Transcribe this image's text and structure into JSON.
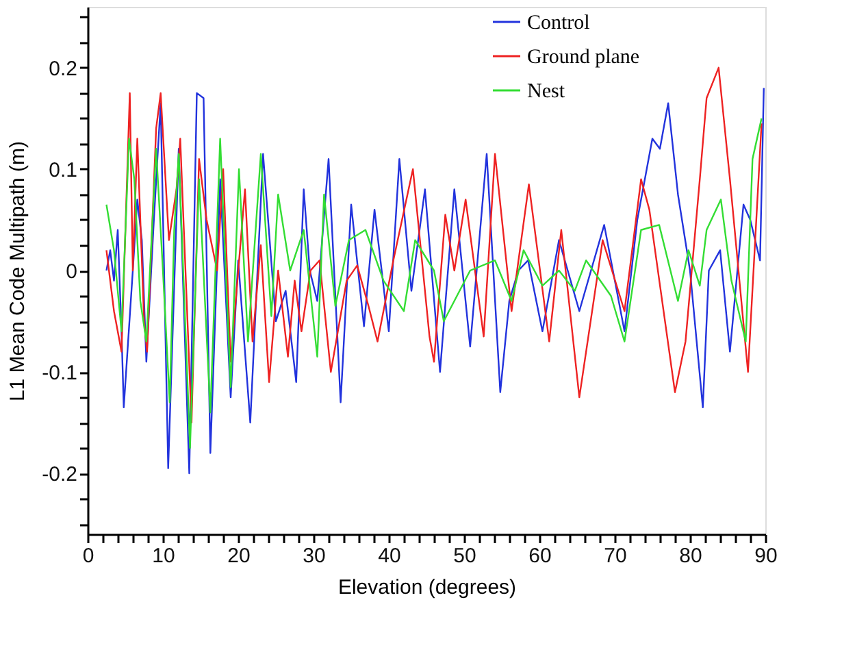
{
  "chart_data": {
    "type": "line",
    "xlabel": "Elevation (degrees)",
    "ylabel": "L1 Mean Code Multipath (m)",
    "xlim": [
      0,
      90
    ],
    "ylim": [
      -0.26,
      0.26
    ],
    "xticks": [
      0,
      {
        "value": 2,
        "label": null
      },
      {
        "value": 4,
        "label": null
      },
      {
        "value": 6,
        "label": null
      },
      {
        "value": 8,
        "label": null
      },
      10,
      {
        "value": 12,
        "label": null
      },
      {
        "value": 14,
        "label": null
      },
      {
        "value": 16,
        "label": null
      },
      {
        "value": 18,
        "label": null
      },
      20,
      {
        "value": 22,
        "label": null
      },
      {
        "value": 24,
        "label": null
      },
      {
        "value": 26,
        "label": null
      },
      {
        "value": 28,
        "label": null
      },
      30,
      {
        "value": 32,
        "label": null
      },
      {
        "value": 34,
        "label": null
      },
      {
        "value": 36,
        "label": null
      },
      {
        "value": 38,
        "label": null
      },
      40,
      {
        "value": 42,
        "label": null
      },
      {
        "value": 44,
        "label": null
      },
      {
        "value": 46,
        "label": null
      },
      {
        "value": 48,
        "label": null
      },
      50,
      {
        "value": 52,
        "label": null
      },
      {
        "value": 54,
        "label": null
      },
      {
        "value": 56,
        "label": null
      },
      {
        "value": 58,
        "label": null
      },
      60,
      {
        "value": 62,
        "label": null
      },
      {
        "value": 64,
        "label": null
      },
      {
        "value": 66,
        "label": null
      },
      {
        "value": 68,
        "label": null
      },
      70,
      {
        "value": 72,
        "label": null
      },
      {
        "value": 74,
        "label": null
      },
      {
        "value": 76,
        "label": null
      },
      {
        "value": 78,
        "label": null
      },
      80,
      {
        "value": 82,
        "label": null
      },
      {
        "value": 84,
        "label": null
      },
      {
        "value": 86,
        "label": null
      },
      {
        "value": 88,
        "label": null
      },
      90
    ],
    "yticks": [
      {
        "value": -0.25,
        "label": null
      },
      {
        "value": -0.225,
        "label": null
      },
      -0.2,
      {
        "value": -0.175,
        "label": null
      },
      {
        "value": -0.15,
        "label": null
      },
      {
        "value": -0.125,
        "label": null
      },
      -0.1,
      {
        "value": -0.075,
        "label": null
      },
      {
        "value": -0.05,
        "label": null
      },
      {
        "value": -0.025,
        "label": null
      },
      0,
      {
        "value": 0.025,
        "label": null
      },
      {
        "value": 0.05,
        "label": null
      },
      {
        "value": 0.075,
        "label": null
      },
      0.1,
      {
        "value": 0.125,
        "label": null
      },
      {
        "value": 0.15,
        "label": null
      },
      {
        "value": 0.175,
        "label": null
      },
      0.2,
      {
        "value": 0.225,
        "label": null
      },
      {
        "value": 0.25,
        "label": null
      }
    ],
    "grid": false,
    "legend": "top right",
    "marker": "none",
    "line_style": "solid",
    "series": [
      {
        "name": "Control",
        "color": "#2233dd",
        "x": [
          2.5,
          3,
          3.5,
          4,
          4.5,
          4.8,
          6,
          6.6,
          7.2,
          7.8,
          8.8,
          9.7,
          10.7,
          12.1,
          13.5,
          14.5,
          15.4,
          16.3,
          17.6,
          19,
          20,
          21.6,
          23.3,
          25,
          26.3,
          27.7,
          28.7,
          29.5,
          30.5,
          32,
          33.6,
          35,
          36.7,
          38.1,
          40,
          41.4,
          43,
          44.8,
          46.8,
          48.7,
          50.8,
          53,
          54.8,
          56,
          57.2,
          58.5,
          60.4,
          62.6,
          65.3,
          68.6,
          71.3,
          73,
          75,
          76,
          77.1,
          78.4,
          80,
          81.7,
          82.5,
          84,
          85.3,
          87.1,
          88,
          89.3,
          89.8
        ],
        "values": [
          0.0,
          0.02,
          -0.01,
          0.04,
          -0.06,
          -0.135,
          0.0,
          0.07,
          0.03,
          -0.09,
          0.05,
          0.165,
          -0.195,
          0.12,
          -0.2,
          0.175,
          0.17,
          -0.18,
          0.09,
          -0.125,
          0.01,
          -0.15,
          0.115,
          -0.05,
          -0.02,
          -0.11,
          0.08,
          0.0,
          -0.03,
          0.11,
          -0.13,
          0.065,
          -0.055,
          0.06,
          -0.06,
          0.11,
          -0.02,
          0.08,
          -0.1,
          0.08,
          -0.075,
          0.115,
          -0.12,
          -0.03,
          0.0,
          0.01,
          -0.06,
          0.03,
          -0.04,
          0.045,
          -0.06,
          0.05,
          0.13,
          0.12,
          0.165,
          0.075,
          0.0,
          -0.135,
          0.0,
          0.02,
          -0.08,
          0.065,
          0.05,
          0.01,
          0.18
        ]
      },
      {
        "name": "Ground plane",
        "color": "#ee2222",
        "x": [
          2.5,
          3.5,
          4.5,
          5.6,
          6,
          6.6,
          7.5,
          7.9,
          9.1,
          9.7,
          10.8,
          11.8,
          12.3,
          13.8,
          14.8,
          15.8,
          17.2,
          18,
          19,
          20.9,
          21.9,
          23,
          24.1,
          25.3,
          26.6,
          27.5,
          28.4,
          29.6,
          30.8,
          32.3,
          34.4,
          35.8,
          37.3,
          38.5,
          40.6,
          43.2,
          45.4,
          46,
          47.5,
          48.7,
          50.2,
          52.6,
          54.1,
          56.3,
          58.6,
          61.3,
          62.9,
          65.3,
          68.4,
          71.3,
          73.5,
          74.6,
          78,
          79.4,
          81.3,
          82.2,
          83.8,
          85.3,
          87.7,
          89.5
        ],
        "values": [
          0.02,
          -0.04,
          -0.08,
          0.175,
          0.0,
          0.13,
          -0.05,
          -0.08,
          0.14,
          0.175,
          0.03,
          0.08,
          0.13,
          -0.15,
          0.11,
          0.05,
          0.0,
          0.1,
          -0.09,
          0.08,
          -0.07,
          0.025,
          -0.11,
          0.0,
          -0.085,
          -0.01,
          -0.06,
          0.0,
          0.01,
          -0.1,
          -0.01,
          0.005,
          -0.035,
          -0.07,
          0.01,
          0.1,
          -0.065,
          -0.09,
          0.055,
          0.0,
          0.07,
          -0.065,
          0.115,
          -0.04,
          0.085,
          -0.07,
          0.04,
          -0.125,
          0.03,
          -0.04,
          0.09,
          0.06,
          -0.12,
          -0.07,
          0.09,
          0.17,
          0.2,
          0.09,
          -0.1,
          0.145
        ]
      },
      {
        "name": "Nest",
        "color": "#33dd33",
        "x": [
          2.5,
          3.5,
          4.5,
          5.5,
          6.2,
          7,
          7.8,
          9.1,
          10,
          10.9,
          11.5,
          12.1,
          13.6,
          14.8,
          16.3,
          17.6,
          19,
          20.1,
          21.3,
          23,
          24.4,
          25.3,
          26.9,
          28.7,
          30.5,
          31.4,
          32.9,
          34.7,
          36.9,
          39.3,
          42,
          43.5,
          46,
          47.3,
          50.8,
          54.1,
          56.3,
          57.9,
          60.4,
          62.6,
          64.7,
          66.2,
          69.5,
          71.3,
          73.5,
          75.9,
          78.4,
          79.8,
          81.3,
          82.2,
          84.1,
          85.5,
          87.4,
          88.3,
          89.5
        ],
        "values": [
          0.065,
          0.02,
          -0.06,
          0.13,
          0.09,
          -0.03,
          -0.07,
          0.12,
          0.0,
          -0.13,
          0.04,
          0.115,
          -0.175,
          0.09,
          -0.14,
          0.13,
          -0.115,
          0.1,
          -0.07,
          0.115,
          -0.045,
          0.075,
          0.0,
          0.04,
          -0.085,
          0.075,
          -0.035,
          0.03,
          0.04,
          -0.01,
          -0.04,
          0.03,
          0.0,
          -0.05,
          0.0,
          0.01,
          -0.03,
          0.02,
          -0.015,
          0.0,
          -0.02,
          0.01,
          -0.025,
          -0.07,
          0.04,
          0.045,
          -0.03,
          0.02,
          -0.015,
          0.04,
          0.07,
          -0.01,
          -0.07,
          0.11,
          0.15
        ]
      }
    ]
  }
}
